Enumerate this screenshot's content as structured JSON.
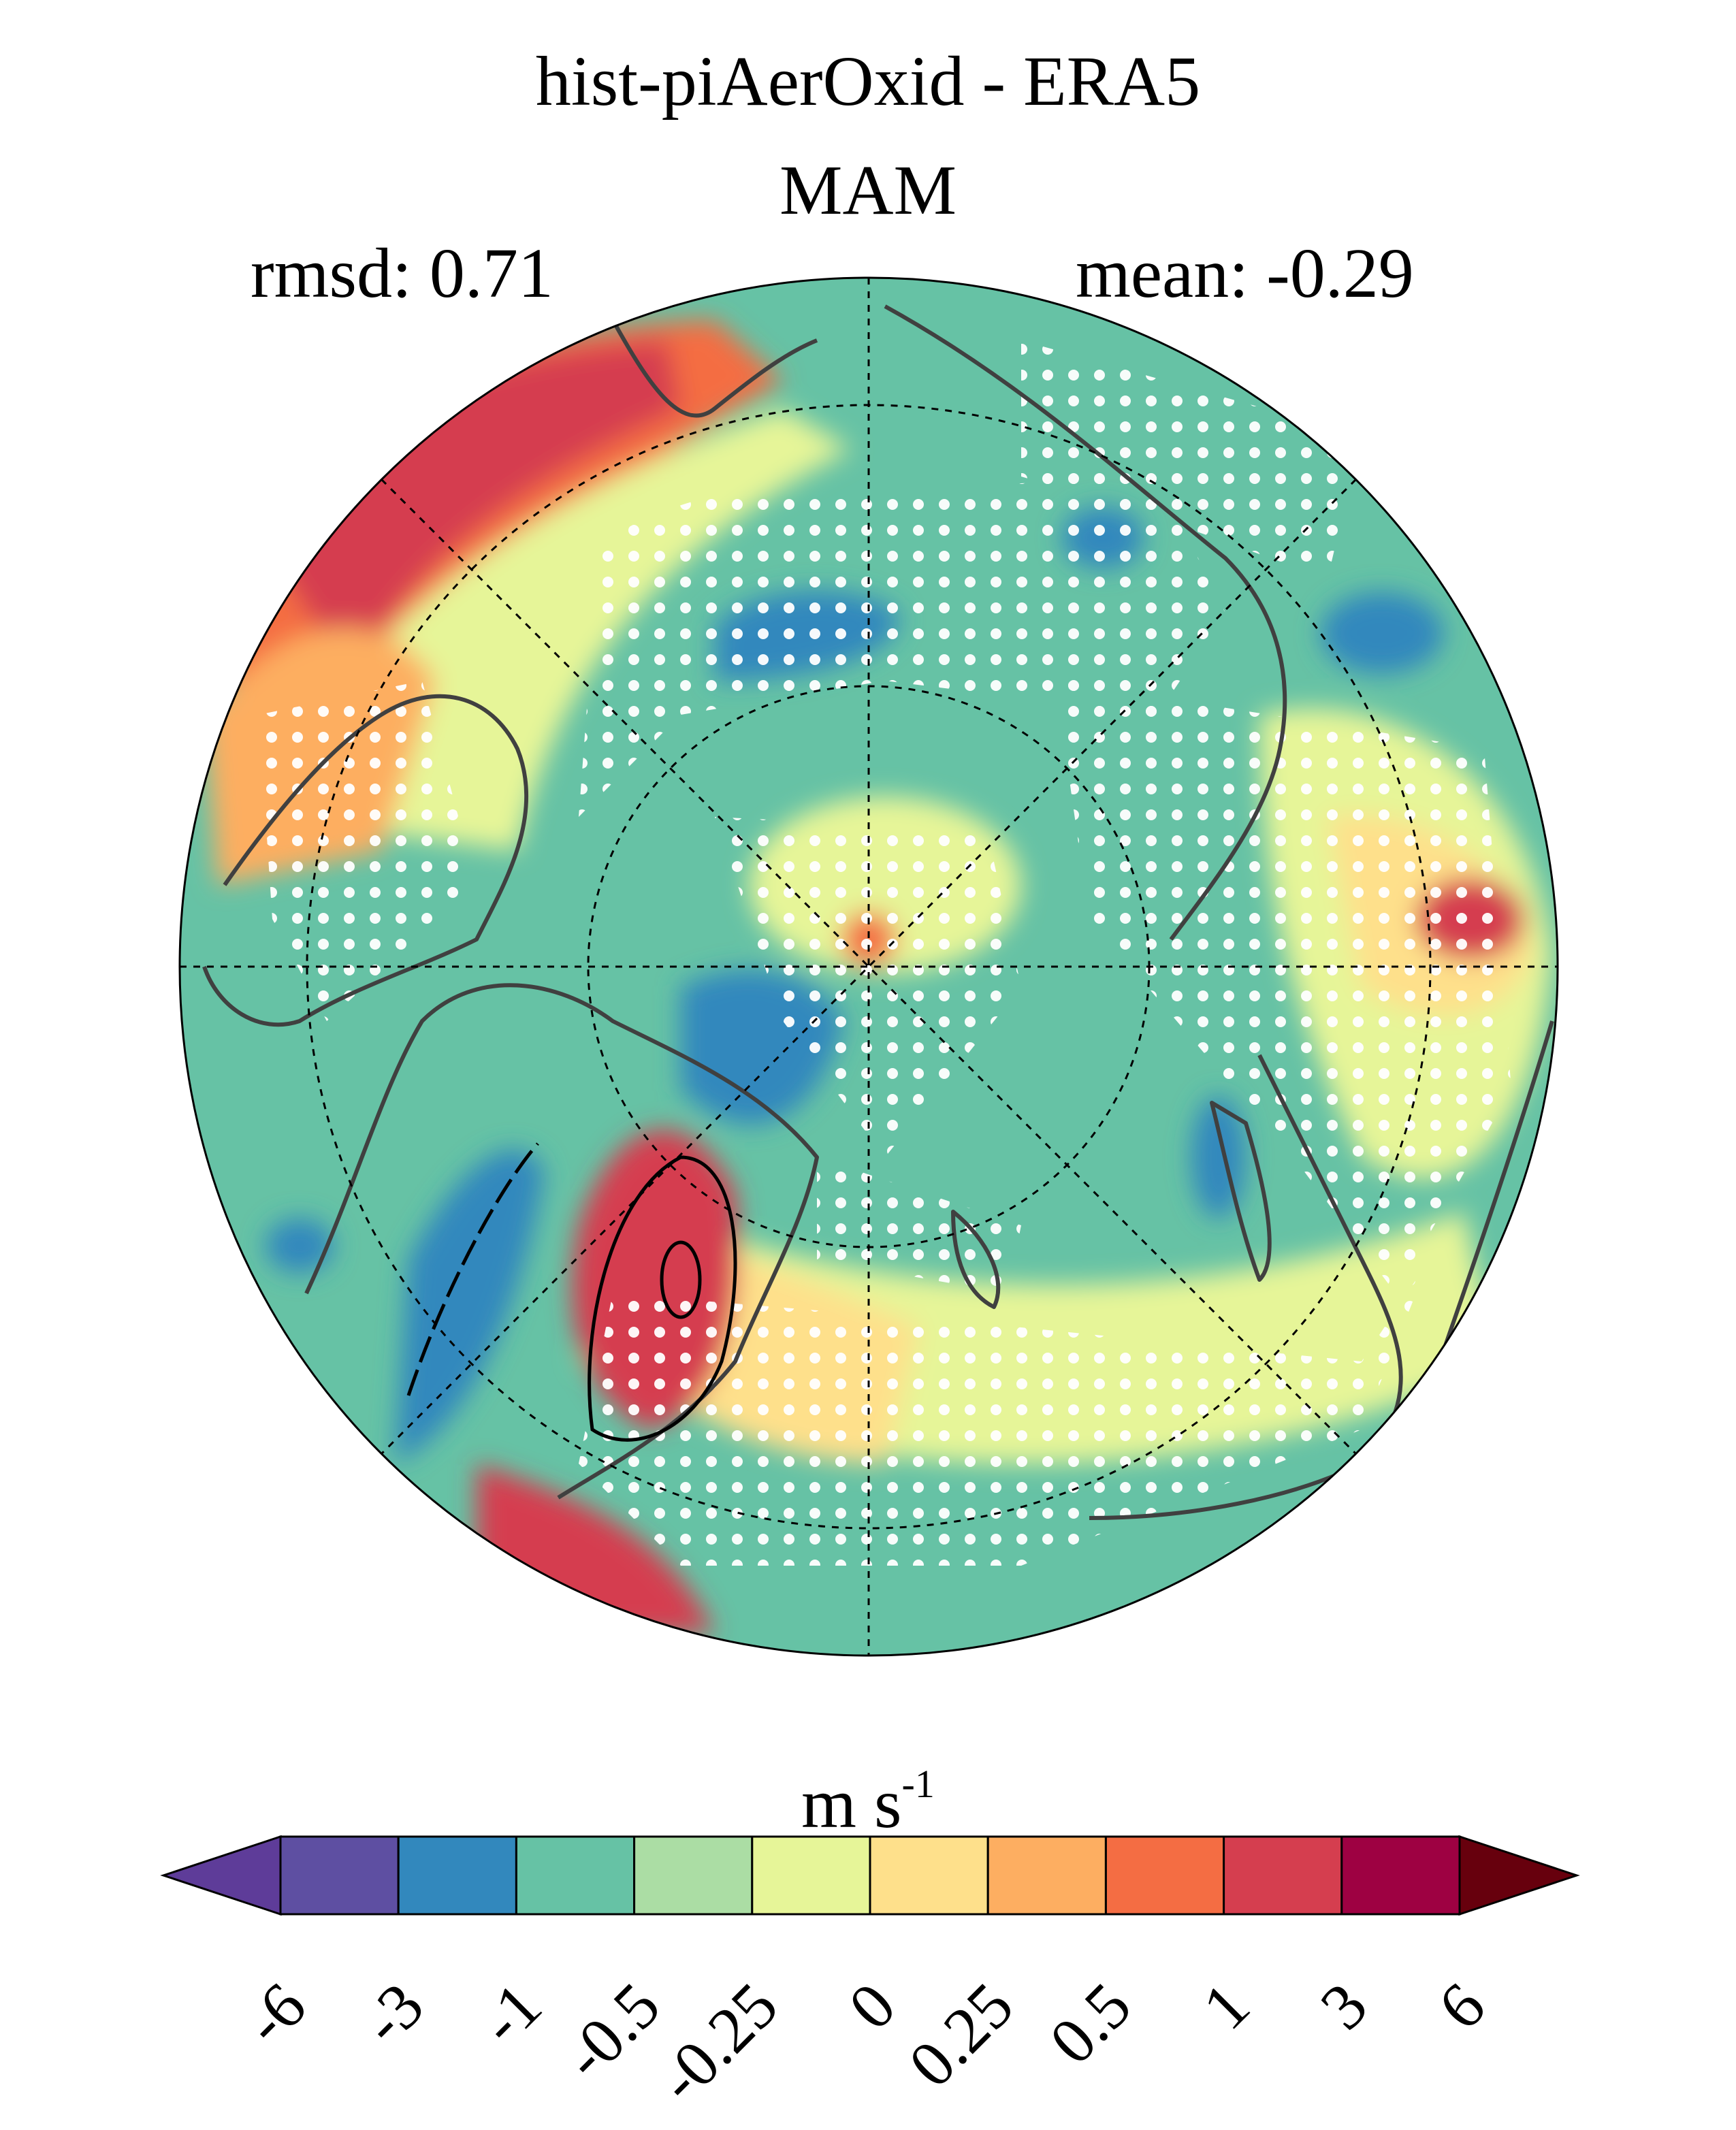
{
  "title": "hist-piAerOxid - ERA5",
  "season": "MAM",
  "stats": {
    "rmsd": "rmsd: 0.71",
    "mean": "mean: -0.29"
  },
  "colorbar": {
    "units_base": "m s",
    "units_exp": "-1",
    "ticks": [
      "-6",
      "-3",
      "-1",
      "-0.5",
      "-0.25",
      "0",
      "0.25",
      "0.5",
      "1",
      "3",
      "6"
    ],
    "colors": [
      "#5e3c99",
      "#5e4fa2",
      "#3288bd",
      "#66c2a5",
      "#abdda4",
      "#e6f598",
      "#fee08b",
      "#fdae61",
      "#f46d43",
      "#d53e4f",
      "#9e0142",
      "#67000d"
    ]
  },
  "map": {
    "projection": "north polar stereographic",
    "stippling": "white dots",
    "contours": "black lines"
  }
}
